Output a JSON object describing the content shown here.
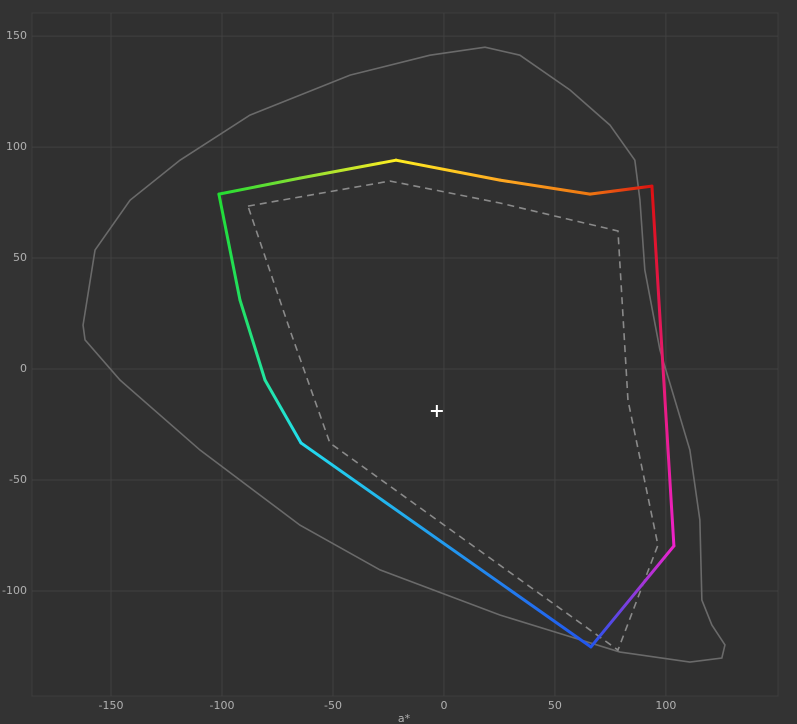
{
  "chart_data": {
    "type": "line",
    "x_label": "a*",
    "xlim": [
      -185.6,
      150.5
    ],
    "ylim": [
      -147.3,
      160.4
    ],
    "xticks": [
      -150,
      -100,
      -50,
      0,
      50,
      100
    ],
    "yticks": [
      -100,
      -50,
      0,
      50,
      100,
      150
    ],
    "grid": true,
    "series": [
      {
        "color": "#6a6a6a",
        "style": "solid",
        "closed": true,
        "x": [
          -162.6,
          -157.2,
          -141.4,
          -118.9,
          -87.4,
          -42.3,
          -6.3,
          18.5,
          34.2,
          56.8,
          74.8,
          86.0,
          88.3,
          90.5,
          97.3,
          110.8,
          115.3,
          116.2,
          120.7,
          126.6,
          125.2,
          110.8,
          79.3,
          25.2,
          -28.8,
          -64.9,
          -109.9,
          -145.9,
          -161.7
        ],
        "values": [
          19.8,
          53.6,
          76.1,
          94.1,
          114.4,
          132.4,
          141.4,
          145.0,
          141.4,
          125.7,
          109.9,
          94.1,
          76.1,
          44.6,
          8.6,
          -36.5,
          -68.0,
          -104.1,
          -115.3,
          -124.3,
          -130.2,
          -132.0,
          -127.5,
          -110.8,
          -90.5,
          -70.3,
          -36.5,
          -5.0,
          13.1
        ]
      },
      {
        "color": "#8a8a8a",
        "style": "dashed",
        "closed": true,
        "x": [
          -88.3,
          -24.3,
          25.2,
          78.4,
          82.9,
          96.4,
          78.4,
          -51.4,
          -69.4
        ],
        "values": [
          73.4,
          84.7,
          74.8,
          62.2,
          -14.0,
          -79.3,
          -126.6,
          -33.3,
          17.6
        ]
      },
      {
        "colors": [
          "#22dd33",
          "#88e033",
          "#ffee22",
          "#ffaa22",
          "#ee7711",
          "#dd1111",
          "#ee22cc",
          "#2255ee",
          "#22ddee",
          "#22e6a0",
          "#22e060"
        ],
        "style": "solid",
        "closed": true,
        "x": [
          -101.4,
          -64.9,
          -21.6,
          25.2,
          65.8,
          93.7,
          103.6,
          66.2,
          -64.4,
          -80.6,
          -91.9
        ],
        "values": [
          78.8,
          86.0,
          94.1,
          85.1,
          78.8,
          82.4,
          -79.7,
          -125.2,
          -33.3,
          -5.0,
          31.1
        ]
      },
      {
        "color": "#ffffff",
        "style": "plus",
        "x": [
          -3.2
        ],
        "values": [
          -18.9
        ]
      }
    ]
  }
}
